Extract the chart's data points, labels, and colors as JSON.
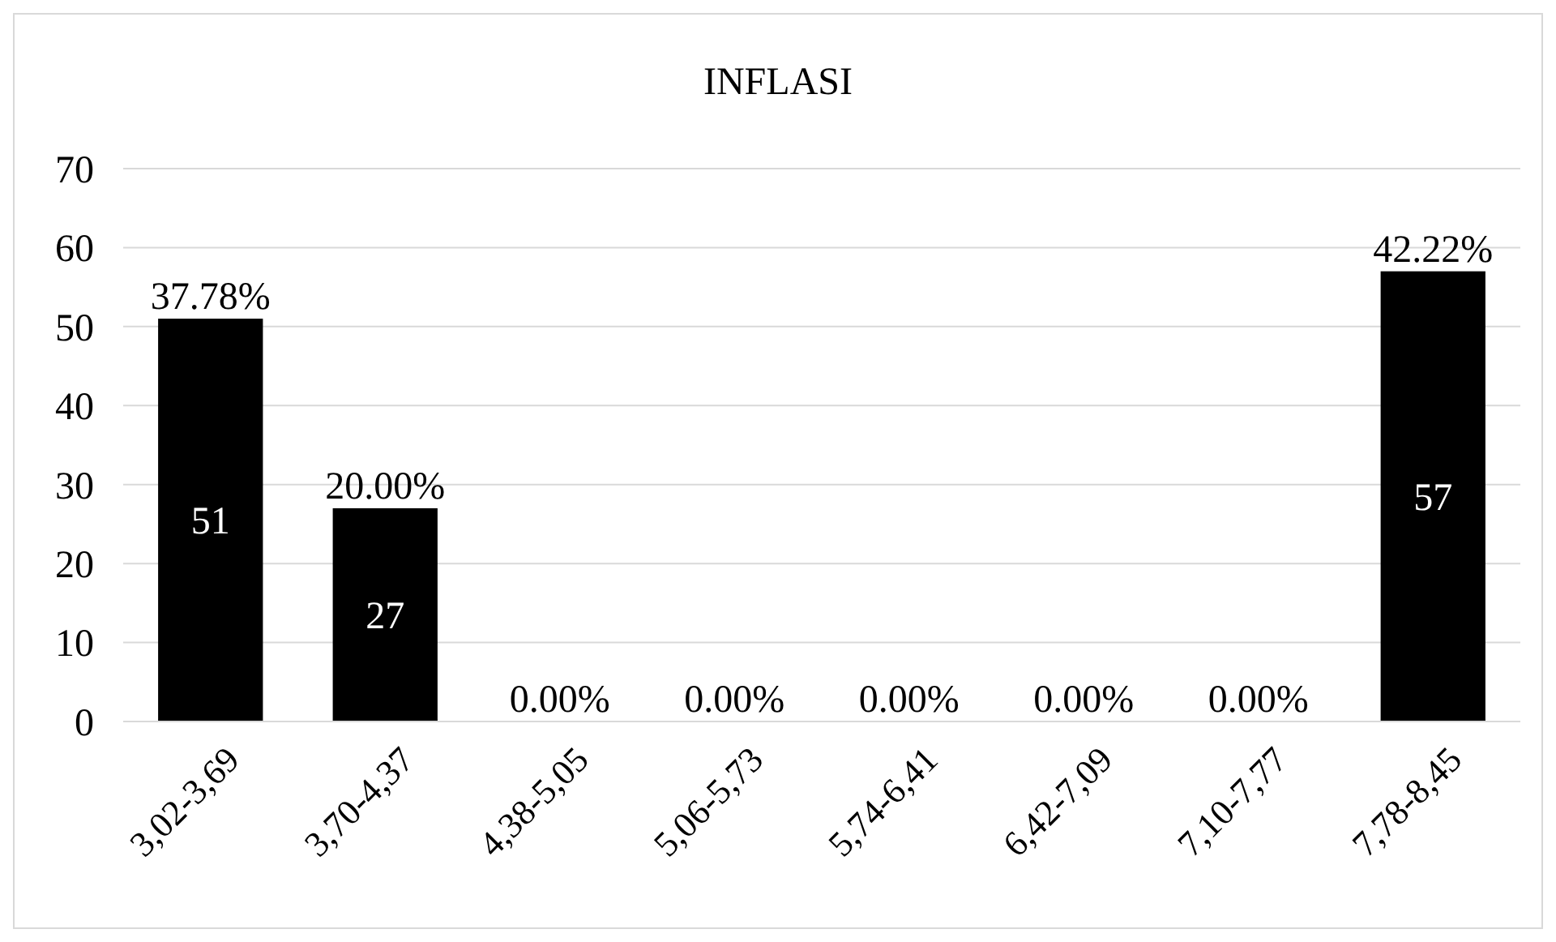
{
  "chart_data": {
    "type": "bar",
    "title": "INFLASI",
    "categories": [
      "3,02-3,69",
      "3,70-4,37",
      "4,38-5,05",
      "5,06-5,73",
      "5,74-6,41",
      "6,42-7,09",
      "7,10-7,77",
      "7,78-8,45"
    ],
    "values": [
      51,
      27,
      0,
      0,
      0,
      0,
      0,
      57
    ],
    "value_labels": [
      "51",
      "27",
      null,
      null,
      null,
      null,
      null,
      "57"
    ],
    "color": "#000000",
    "ylim": [
      0,
      70
    ],
    "yticks": [
      0,
      10,
      20,
      30,
      40,
      50,
      60,
      70
    ],
    "grid": "y",
    "annotations": [
      {
        "text": "37.78%",
        "x": "3,02-3,69",
        "y": 51
      },
      {
        "text": "20.00%",
        "x": "3,70-4,37",
        "y": 27
      },
      {
        "text": "0.00%",
        "x": "4,38-5,05",
        "y": 0
      },
      {
        "text": "0.00%",
        "x": "5,06-5,73",
        "y": 0
      },
      {
        "text": "0.00%",
        "x": "5,74-6,41",
        "y": 0
      },
      {
        "text": "0.00%",
        "x": "6,42-7,09",
        "y": 0
      },
      {
        "text": "0.00%",
        "x": "7,10-7,77",
        "y": 0
      },
      {
        "text": "42.22%",
        "x": "7,78-8,45",
        "y": 57
      }
    ]
  }
}
